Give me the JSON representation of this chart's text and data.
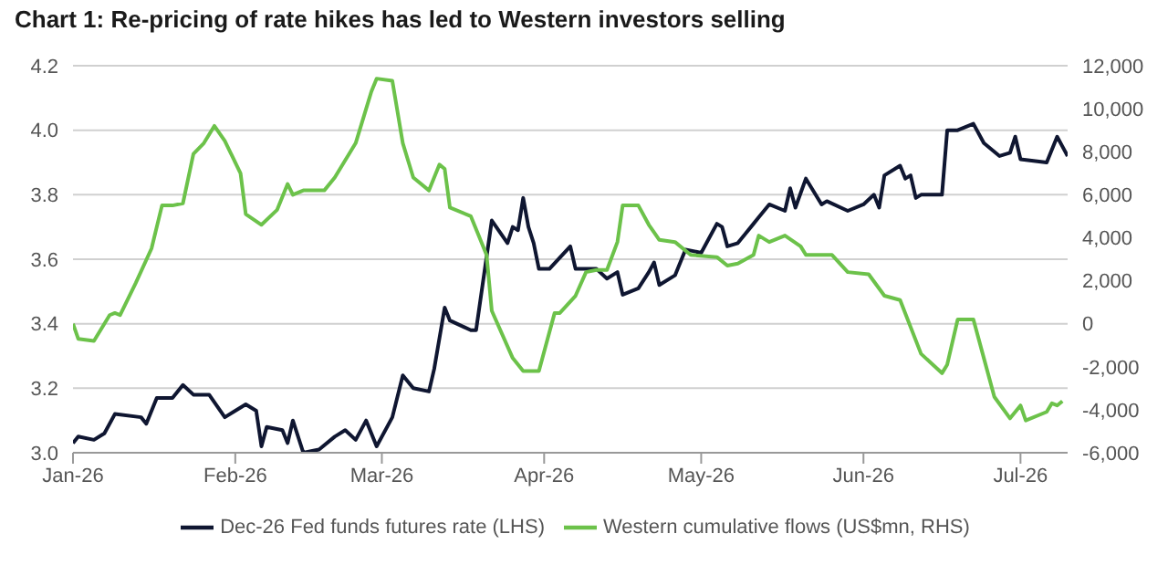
{
  "chart_data": {
    "type": "line",
    "title": "Chart 1: Re-pricing of rate hikes has led to Western investors selling",
    "series": [
      {
        "name": "Dec-26 Fed funds futures rate (LHS)",
        "color": "#0f1631",
        "axis": "y",
        "x": [
          "2026-01-01",
          "2026-01-02",
          "2026-01-05",
          "2026-01-07",
          "2026-01-09",
          "2026-01-14",
          "2026-01-15",
          "2026-01-17",
          "2026-01-20",
          "2026-01-22",
          "2026-01-24",
          "2026-01-27",
          "2026-01-30",
          "2026-02-03",
          "2026-02-05",
          "2026-02-06",
          "2026-02-07",
          "2026-02-10",
          "2026-02-11",
          "2026-02-12",
          "2026-02-14",
          "2026-02-17",
          "2026-02-20",
          "2026-02-22",
          "2026-02-24",
          "2026-02-26",
          "2026-02-28",
          "2026-03-03",
          "2026-03-05",
          "2026-03-07",
          "2026-03-10",
          "2026-03-11",
          "2026-03-13",
          "2026-03-14",
          "2026-03-18",
          "2026-03-19",
          "2026-03-22",
          "2026-03-25",
          "2026-03-26",
          "2026-03-27",
          "2026-03-28",
          "2026-03-29",
          "2026-03-30",
          "2026-03-31",
          "2026-04-02",
          "2026-04-06",
          "2026-04-07",
          "2026-04-11",
          "2026-04-13",
          "2026-04-15",
          "2026-04-16",
          "2026-04-19",
          "2026-04-21",
          "2026-04-22",
          "2026-04-23",
          "2026-04-26",
          "2026-04-28",
          "2026-05-01",
          "2026-05-04",
          "2026-05-05",
          "2026-05-06",
          "2026-05-08",
          "2026-05-11",
          "2026-05-12",
          "2026-05-14",
          "2026-05-17",
          "2026-05-18",
          "2026-05-19",
          "2026-05-21",
          "2026-05-24",
          "2026-05-25",
          "2026-05-29",
          "2026-06-01",
          "2026-06-03",
          "2026-06-04",
          "2026-06-05",
          "2026-06-08",
          "2026-06-09",
          "2026-06-10",
          "2026-06-11",
          "2026-06-12",
          "2026-06-16",
          "2026-06-17",
          "2026-06-19",
          "2026-06-22",
          "2026-06-24",
          "2026-06-27",
          "2026-06-29",
          "2026-06-30",
          "2026-07-01",
          "2026-07-06",
          "2026-07-08",
          "2026-07-09",
          "2026-07-10"
        ],
        "values": [
          3.03,
          3.05,
          3.04,
          3.06,
          3.12,
          3.11,
          3.09,
          3.17,
          3.17,
          3.21,
          3.18,
          3.18,
          3.11,
          3.15,
          3.13,
          3.02,
          3.08,
          3.07,
          3.03,
          3.1,
          3.0,
          3.01,
          3.05,
          3.07,
          3.04,
          3.1,
          3.02,
          3.11,
          3.24,
          3.2,
          3.19,
          3.26,
          3.45,
          3.41,
          3.38,
          3.38,
          3.72,
          3.65,
          3.7,
          3.69,
          3.79,
          3.7,
          3.65,
          3.57,
          3.57,
          3.64,
          3.57,
          3.57,
          3.54,
          3.56,
          3.49,
          3.51,
          3.56,
          3.59,
          3.52,
          3.55,
          3.63,
          3.62,
          3.71,
          3.7,
          3.64,
          3.65,
          3.71,
          3.73,
          3.77,
          3.75,
          3.82,
          3.76,
          3.85,
          3.77,
          3.78,
          3.75,
          3.77,
          3.8,
          3.76,
          3.86,
          3.89,
          3.85,
          3.86,
          3.79,
          3.8,
          3.8,
          4.0,
          4.0,
          4.02,
          3.96,
          3.92,
          3.93,
          3.98,
          3.91,
          3.9,
          3.98,
          3.95,
          3.92
        ]
      },
      {
        "name": "Western cumulative flows (US$mn, RHS)",
        "color": "#6cc24a",
        "axis": "y2",
        "x": [
          "2026-01-01",
          "2026-01-02",
          "2026-01-05",
          "2026-01-08",
          "2026-01-09",
          "2026-01-10",
          "2026-01-13",
          "2026-01-16",
          "2026-01-18",
          "2026-01-20",
          "2026-01-22",
          "2026-01-24",
          "2026-01-26",
          "2026-01-28",
          "2026-01-30",
          "2026-02-02",
          "2026-02-03",
          "2026-02-06",
          "2026-02-09",
          "2026-02-11",
          "2026-02-12",
          "2026-02-14",
          "2026-02-18",
          "2026-02-20",
          "2026-02-24",
          "2026-02-26",
          "2026-02-27",
          "2026-02-28",
          "2026-03-03",
          "2026-03-05",
          "2026-03-07",
          "2026-03-10",
          "2026-03-12",
          "2026-03-13",
          "2026-03-14",
          "2026-03-18",
          "2026-03-21",
          "2026-03-22",
          "2026-03-26",
          "2026-03-28",
          "2026-03-31",
          "2026-04-03",
          "2026-04-04",
          "2026-04-07",
          "2026-04-09",
          "2026-04-11",
          "2026-04-13",
          "2026-04-15",
          "2026-04-16",
          "2026-04-19",
          "2026-04-21",
          "2026-04-23",
          "2026-04-26",
          "2026-04-29",
          "2026-05-04",
          "2026-05-06",
          "2026-05-08",
          "2026-05-11",
          "2026-05-12",
          "2026-05-14",
          "2026-05-17",
          "2026-05-20",
          "2026-05-21",
          "2026-05-26",
          "2026-05-29",
          "2026-06-02",
          "2026-06-05",
          "2026-06-08",
          "2026-06-12",
          "2026-06-16",
          "2026-06-17",
          "2026-06-19",
          "2026-06-22",
          "2026-06-24",
          "2026-06-26",
          "2026-06-29",
          "2026-07-01",
          "2026-07-02",
          "2026-07-06",
          "2026-07-07",
          "2026-07-08",
          "2026-07-09"
        ],
        "values": [
          0,
          -700,
          -800,
          400,
          500,
          400,
          1900,
          3500,
          5500,
          5500,
          5600,
          7900,
          8400,
          9200,
          8500,
          7000,
          5100,
          4600,
          5300,
          6500,
          6000,
          6200,
          6200,
          6800,
          8400,
          10000,
          10800,
          11400,
          11300,
          8400,
          6800,
          6200,
          7400,
          7200,
          5400,
          5000,
          3200,
          600,
          -1600,
          -2200,
          -2200,
          500,
          500,
          1300,
          2400,
          2500,
          2500,
          3800,
          5500,
          5500,
          4600,
          3900,
          3800,
          3200,
          3100,
          2700,
          2800,
          3200,
          4100,
          3800,
          4100,
          3600,
          3200,
          3200,
          2400,
          2300,
          1300,
          1100,
          -1400,
          -2300,
          -1900,
          200,
          200,
          -1600,
          -3400,
          -4400,
          -3800,
          -4500,
          -4100,
          -3700,
          -3800,
          -3600
        ]
      }
    ],
    "xlim": [
      "2026-01-01",
      "2026-07-10"
    ],
    "xticks": [
      {
        "value": "2026-01-01",
        "label": "Jan-26"
      },
      {
        "value": "2026-02-01",
        "label": "Feb-26"
      },
      {
        "value": "2026-03-01",
        "label": "Mar-26"
      },
      {
        "value": "2026-04-01",
        "label": "Apr-26"
      },
      {
        "value": "2026-05-01",
        "label": "May-26"
      },
      {
        "value": "2026-06-01",
        "label": "Jun-26"
      },
      {
        "value": "2026-07-01",
        "label": "Jul-26"
      }
    ],
    "ylim": [
      3.0,
      4.2
    ],
    "yticks": [
      {
        "value": 3,
        "label": "3.0"
      },
      3.2,
      3.4,
      3.6,
      3.8,
      {
        "value": 4,
        "label": "4.0"
      },
      4.2
    ],
    "y2lim": [
      -6000,
      12000
    ],
    "y2ticks": [
      {
        "value": -6000,
        "label": "-6,000"
      },
      {
        "value": -4000,
        "label": "-4,000"
      },
      {
        "value": -2000,
        "label": "-2,000"
      },
      0,
      {
        "value": 2000,
        "label": "2,000"
      },
      {
        "value": 4000,
        "label": "4,000"
      },
      {
        "value": 6000,
        "label": "6,000"
      },
      {
        "value": 8000,
        "label": "8,000"
      },
      {
        "value": 10000,
        "label": "10,000"
      },
      {
        "value": 12000,
        "label": "12,000"
      }
    ],
    "grid": "y",
    "legend": "bottom",
    "marker": "none",
    "line_style": "solid"
  }
}
